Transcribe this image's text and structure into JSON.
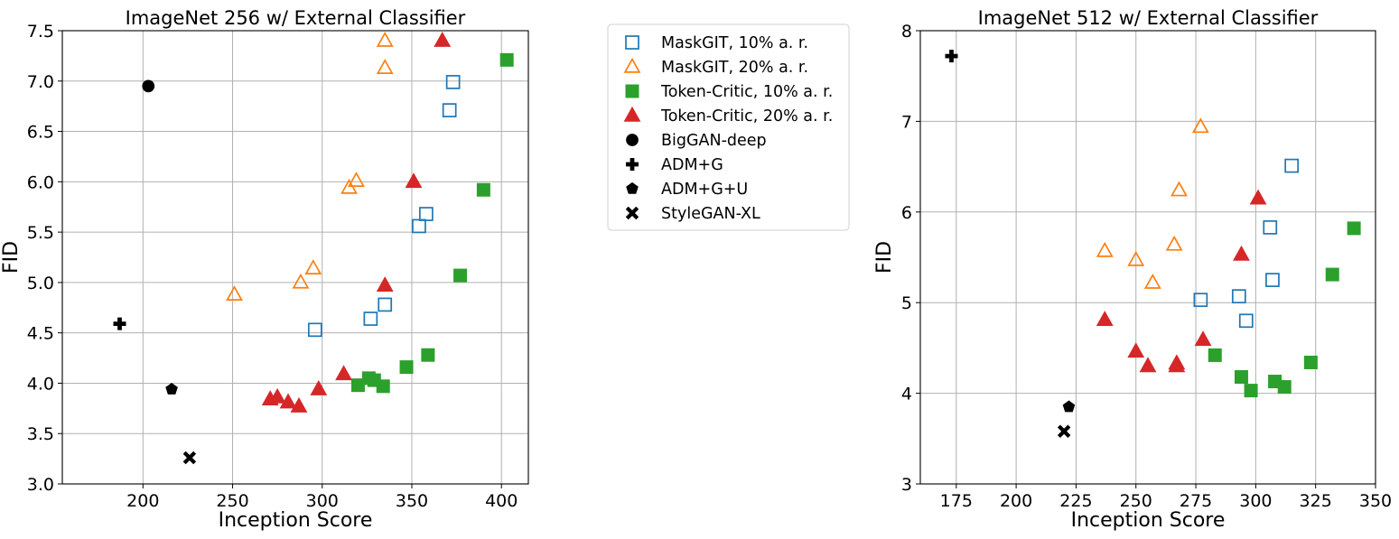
{
  "colors": {
    "maskgit": "#1f77b4",
    "maskgit20": "#ff7f0e",
    "tc": "#2ca02c",
    "tc20": "#d62728",
    "black": "#000000"
  },
  "legend": {
    "placement": "outside-right-of-left-plot",
    "entries": [
      {
        "key": "mg10",
        "label": "MaskGIT, 10% a. r.",
        "marker": "square-open",
        "color": "#1f77b4"
      },
      {
        "key": "mg20",
        "label": "MaskGIT, 20% a. r.",
        "marker": "triangle-open",
        "color": "#ff7f0e"
      },
      {
        "key": "tc10",
        "label": "Token-Critic, 10% a. r.",
        "marker": "square",
        "color": "#2ca02c"
      },
      {
        "key": "tc20",
        "label": "Token-Critic, 20% a. r.",
        "marker": "triangle",
        "color": "#d62728"
      },
      {
        "key": "biggan",
        "label": "BigGAN-deep",
        "marker": "circle",
        "color": "#000000"
      },
      {
        "key": "admg",
        "label": "ADM+G",
        "marker": "plus",
        "color": "#000000"
      },
      {
        "key": "admgu",
        "label": "ADM+G+U",
        "marker": "pentagon",
        "color": "#000000"
      },
      {
        "key": "sgxl",
        "label": "StyleGAN-XL",
        "marker": "x",
        "color": "#000000"
      }
    ]
  },
  "chart_data": [
    {
      "type": "scatter",
      "title": "ImageNet 256 w/ External Classifier",
      "xlabel": "Inception Score",
      "ylabel": "FID",
      "xlim": [
        155,
        415
      ],
      "ylim": [
        3.0,
        7.5
      ],
      "grid": true,
      "xticks": [
        200,
        250,
        300,
        350,
        400
      ],
      "yticks": [
        3.0,
        3.5,
        4.0,
        4.5,
        5.0,
        5.5,
        6.0,
        6.5,
        7.0,
        7.5
      ],
      "ytick_labels": [
        "3.0",
        "3.5",
        "4.0",
        "4.5",
        "5.0",
        "5.5",
        "6.0",
        "6.5",
        "7.0",
        "7.5"
      ],
      "series": [
        {
          "key": "mg10",
          "name": "MaskGIT, 10% a. r.",
          "x": [
            296,
            327,
            335,
            354,
            358,
            371,
            373
          ],
          "y": [
            4.53,
            4.64,
            4.78,
            5.56,
            5.68,
            6.71,
            6.99
          ]
        },
        {
          "key": "mg20",
          "name": "MaskGIT, 20% a. r.",
          "x": [
            251,
            288,
            295,
            315,
            319,
            335,
            335
          ],
          "y": [
            4.88,
            5.0,
            5.14,
            5.94,
            6.01,
            7.13,
            7.4
          ]
        },
        {
          "key": "tc10",
          "name": "Token-Critic, 10% a. r.",
          "x": [
            320,
            326,
            329,
            334,
            347,
            359,
            377,
            390,
            403
          ],
          "y": [
            3.98,
            4.05,
            4.03,
            3.97,
            4.16,
            4.28,
            5.07,
            5.92,
            7.21
          ]
        },
        {
          "key": "tc20",
          "name": "Token-Critic, 20% a. r.",
          "x": [
            271,
            275,
            281,
            287,
            298,
            312,
            335,
            351,
            367
          ],
          "y": [
            3.84,
            3.86,
            3.81,
            3.77,
            3.94,
            4.09,
            4.97,
            6.0,
            7.4
          ]
        },
        {
          "key": "biggan",
          "name": "BigGAN-deep",
          "x": [
            203
          ],
          "y": [
            6.95
          ]
        },
        {
          "key": "admg",
          "name": "ADM+G",
          "x": [
            187
          ],
          "y": [
            4.59
          ]
        },
        {
          "key": "admgu",
          "name": "ADM+G+U",
          "x": [
            216
          ],
          "y": [
            3.94
          ]
        },
        {
          "key": "sgxl",
          "name": "StyleGAN-XL",
          "x": [
            226
          ],
          "y": [
            3.26
          ]
        }
      ]
    },
    {
      "type": "scatter",
      "title": "ImageNet 512 w/ External Classifier",
      "xlabel": "Inception Score",
      "ylabel": "FID",
      "xlim": [
        160,
        350
      ],
      "ylim": [
        3,
        8
      ],
      "grid": true,
      "xticks": [
        175,
        200,
        225,
        250,
        275,
        300,
        325,
        350
      ],
      "yticks": [
        3,
        4,
        5,
        6,
        7,
        8
      ],
      "ytick_labels": [
        "3",
        "4",
        "5",
        "6",
        "7",
        "8"
      ],
      "series": [
        {
          "key": "mg10",
          "name": "MaskGIT, 10% a. r.",
          "x": [
            277,
            293,
            296,
            306,
            307,
            315
          ],
          "y": [
            5.03,
            5.07,
            4.8,
            5.83,
            5.25,
            6.51
          ]
        },
        {
          "key": "mg20",
          "name": "MaskGIT, 20% a. r.",
          "x": [
            237,
            250,
            257,
            266,
            268,
            277
          ],
          "y": [
            5.57,
            5.47,
            5.22,
            5.64,
            6.24,
            6.94
          ]
        },
        {
          "key": "tc10",
          "name": "Token-Critic, 10% a. r.",
          "x": [
            283,
            294,
            298,
            308,
            312,
            323,
            332,
            341
          ],
          "y": [
            4.42,
            4.18,
            4.03,
            4.13,
            4.07,
            4.34,
            5.31,
            5.82
          ]
        },
        {
          "key": "tc20",
          "name": "Token-Critic, 20% a. r.",
          "x": [
            237,
            250,
            255,
            267,
            267,
            278,
            294,
            301
          ],
          "y": [
            4.81,
            4.46,
            4.3,
            4.3,
            4.33,
            4.59,
            5.53,
            6.15
          ]
        },
        {
          "key": "admg",
          "name": "ADM+G",
          "x": [
            173
          ],
          "y": [
            7.72
          ]
        },
        {
          "key": "admgu",
          "name": "ADM+G+U",
          "x": [
            222
          ],
          "y": [
            3.85
          ]
        },
        {
          "key": "sgxl",
          "name": "StyleGAN-XL",
          "x": [
            220
          ],
          "y": [
            3.58
          ]
        }
      ]
    }
  ]
}
